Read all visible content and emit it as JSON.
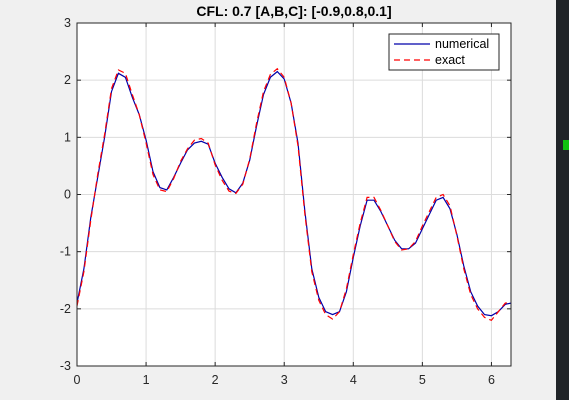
{
  "chart_data": {
    "type": "line",
    "title": "CFL: 0.7   [A,B,C]: [-0.9,0.8,0.1]",
    "xlabel": "",
    "ylabel": "",
    "xlim": [
      0,
      6.2832
    ],
    "ylim": [
      -3,
      3
    ],
    "xticks": [
      0,
      1,
      2,
      3,
      4,
      5,
      6
    ],
    "yticks": [
      -3,
      -2,
      -1,
      0,
      1,
      2,
      3
    ],
    "grid": true,
    "legend_position": "top-right",
    "x": [
      0,
      0.1,
      0.2,
      0.3,
      0.4,
      0.5,
      0.6,
      0.7,
      0.8,
      0.9,
      1.0,
      1.1,
      1.2,
      1.3,
      1.4,
      1.5,
      1.6,
      1.7,
      1.8,
      1.9,
      2.0,
      2.1,
      2.2,
      2.3,
      2.4,
      2.5,
      2.6,
      2.7,
      2.8,
      2.9,
      3.0,
      3.1,
      3.2,
      3.3,
      3.4,
      3.5,
      3.6,
      3.7,
      3.8,
      3.9,
      4.0,
      4.1,
      4.2,
      4.3,
      4.4,
      4.5,
      4.6,
      4.7,
      4.8,
      4.9,
      5.0,
      5.1,
      5.2,
      5.3,
      5.4,
      5.5,
      5.6,
      5.7,
      5.8,
      5.9,
      6.0,
      6.1,
      6.2,
      6.2832
    ],
    "series": [
      {
        "name": "numerical",
        "color": "#0000aa",
        "style": "solid",
        "values": [
          -1.9,
          -1.3,
          -0.4,
          0.3,
          1.0,
          1.8,
          2.12,
          2.05,
          1.7,
          1.4,
          0.95,
          0.4,
          0.12,
          0.08,
          0.3,
          0.55,
          0.78,
          0.9,
          0.93,
          0.88,
          0.55,
          0.3,
          0.1,
          0.03,
          0.2,
          0.6,
          1.2,
          1.75,
          2.05,
          2.15,
          2.02,
          1.6,
          0.9,
          -0.3,
          -1.3,
          -1.8,
          -2.05,
          -2.1,
          -2.05,
          -1.7,
          -1.1,
          -0.55,
          -0.1,
          -0.1,
          -0.3,
          -0.55,
          -0.8,
          -0.95,
          -0.95,
          -0.85,
          -0.6,
          -0.35,
          -0.1,
          -0.05,
          -0.25,
          -0.7,
          -1.25,
          -1.7,
          -1.95,
          -2.1,
          -2.12,
          -2.05,
          -1.92,
          -1.9
        ]
      },
      {
        "name": "exact",
        "color": "#ff0000",
        "style": "dashed",
        "values": [
          -1.95,
          -1.35,
          -0.45,
          0.35,
          1.05,
          1.85,
          2.18,
          2.12,
          1.75,
          1.4,
          0.9,
          0.35,
          0.08,
          0.05,
          0.28,
          0.58,
          0.8,
          0.95,
          0.98,
          0.9,
          0.52,
          0.25,
          0.06,
          0.02,
          0.18,
          0.62,
          1.25,
          1.8,
          2.1,
          2.2,
          2.05,
          1.6,
          0.85,
          -0.35,
          -1.35,
          -1.85,
          -2.1,
          -2.18,
          -2.05,
          -1.65,
          -1.05,
          -0.5,
          -0.05,
          -0.05,
          -0.28,
          -0.55,
          -0.82,
          -0.97,
          -0.95,
          -0.82,
          -0.55,
          -0.3,
          -0.05,
          0.0,
          -0.2,
          -0.72,
          -1.3,
          -1.75,
          -2.0,
          -2.15,
          -2.2,
          -2.05,
          -1.9,
          -1.88
        ]
      }
    ]
  }
}
